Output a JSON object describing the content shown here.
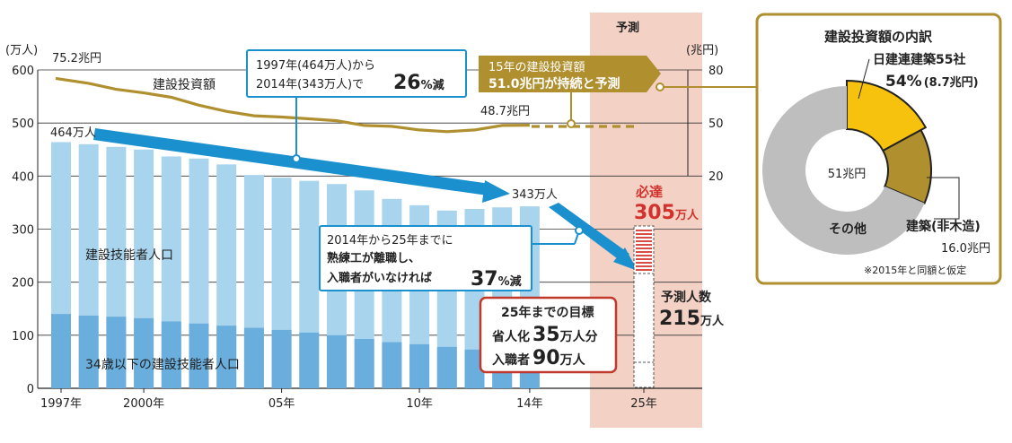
{
  "chart_data": [
    {
      "type": "bar",
      "x_ticks": [
        "1997年",
        "2000年",
        "05年",
        "10年",
        "14年",
        "25年"
      ],
      "years": [
        1997,
        1998,
        1999,
        2000,
        2001,
        2002,
        2003,
        2004,
        2005,
        2006,
        2007,
        2008,
        2009,
        2010,
        2011,
        2012,
        2013,
        2014
      ],
      "y_left_unit": "(万人)",
      "y_left_ticks": [
        0,
        100,
        200,
        300,
        400,
        500,
        600
      ],
      "ylim_left": [
        0,
        600
      ],
      "y_right_unit": "(兆円)",
      "y_right_ticks": [
        20,
        50,
        80
      ],
      "series": [
        {
          "name": "建設技能者人口",
          "color": "#a9d4ee",
          "values": [
            464,
            460,
            455,
            450,
            437,
            433,
            422,
            402,
            397,
            391,
            385,
            373,
            357,
            345,
            335,
            338,
            341,
            343
          ]
        },
        {
          "name": "34歳以下の建設技能者人口",
          "color": "#6aaedd",
          "values": [
            140,
            137,
            135,
            132,
            126,
            122,
            118,
            114,
            110,
            105,
            100,
            93,
            87,
            83,
            78,
            73,
            70,
            69
          ]
        },
        {
          "name": "建設投資額",
          "color": "#b08f2f",
          "unit": "兆円",
          "values": [
            75.2,
            72.4,
            69.0,
            67.0,
            64.5,
            60.0,
            56.5,
            54.0,
            53.3,
            52.3,
            51.2,
            48.5,
            48.0,
            46.0,
            45.0,
            46.0,
            48.5,
            48.7
          ]
        }
      ],
      "forecast": {
        "label": "予測",
        "x": "25年",
        "required": 305,
        "projected": 215,
        "investment": 51.0
      },
      "labels": {
        "investment_title": "建設投資額",
        "investment_start": "75.2兆円",
        "investment_end": "48.7兆円",
        "workforce_start": "464万人",
        "workforce_end": "343万人",
        "workers_label": "建設技能者人口",
        "young_label": "34歳以下の建設技能者人口"
      },
      "annotations": {
        "decline": {
          "line1": "1997年(464万人)から",
          "line2": "2014年(343万人)で",
          "pct": "26",
          "pct_suffix": "%減"
        },
        "forecast_invest": {
          "line1": "15年の建設投資額",
          "line2": "51.0兆円が持続と予測"
        },
        "future": {
          "line1": "2014年から25年までに",
          "line2": "熟練工が離職し、",
          "line3": "入職者がいなければ",
          "pct": "37",
          "pct_suffix": "%減"
        },
        "target": {
          "title": "25年までの目標",
          "line2_a": "省人化",
          "line2_num": "35",
          "line2_b": "万人分",
          "line3_a": "入職者",
          "line3_num": "90",
          "line3_b": "万人"
        },
        "required": {
          "label": "必達",
          "num": "305",
          "unit": "万人"
        },
        "projected": {
          "label": "予測人数",
          "num": "215",
          "unit": "万人"
        }
      }
    },
    {
      "type": "pie",
      "title": "建設投資額の内訳",
      "center_label": "51兆円",
      "slices": [
        {
          "name": "日建連建築55社",
          "share_text": "54%",
          "amount_text": "(8.7兆円)",
          "value": 8.7,
          "color": "#f7c20d"
        },
        {
          "name": "建築(非木造)",
          "amount_text": "16.0兆円",
          "value": 7.3,
          "color": "#b08f2f"
        },
        {
          "name": "その他",
          "value": 35.0,
          "color": "#bebebe"
        }
      ],
      "note": "※2015年と同額と仮定"
    }
  ]
}
